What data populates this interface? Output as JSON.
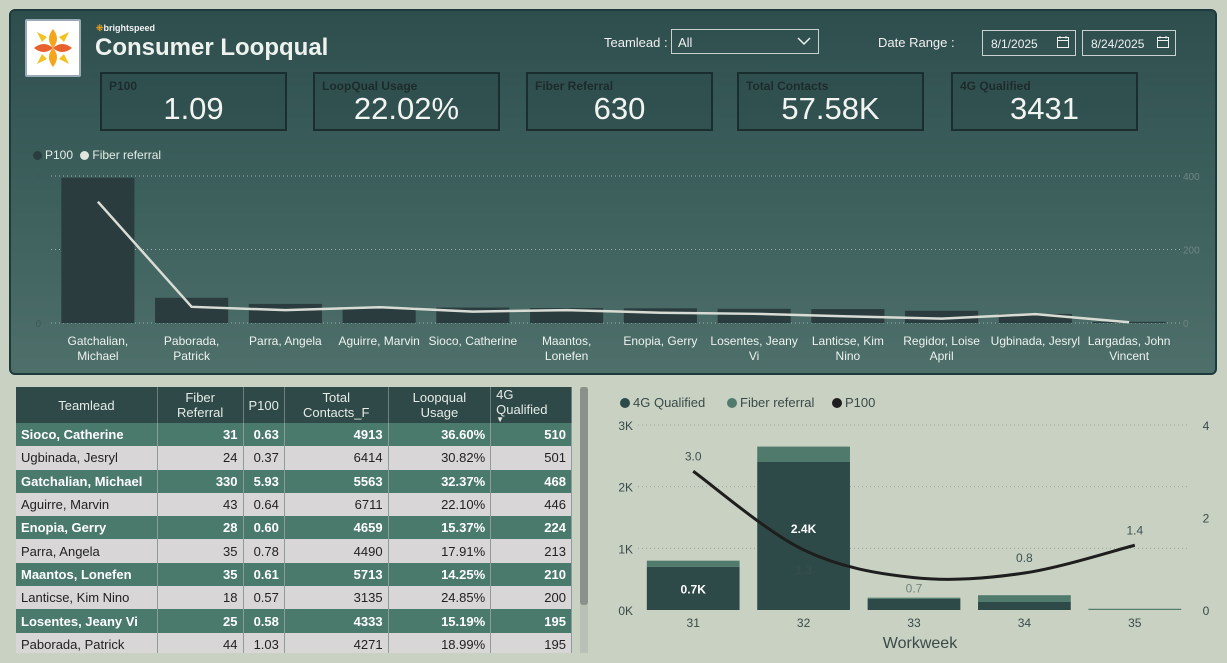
{
  "header": {
    "brand": "brightspeed",
    "title": "Consumer Loopqual"
  },
  "filters": {
    "teamlead_label": "Teamlead :",
    "teamlead_value": "All",
    "date_label": "Date Range :",
    "date_start": "8/1/2025",
    "date_end": "8/24/2025"
  },
  "kpis": [
    {
      "label": "P100",
      "value": "1.09"
    },
    {
      "label": "LoopQual Usage",
      "value": "22.02%"
    },
    {
      "label": "Fiber Referral",
      "value": "630"
    },
    {
      "label": "Total Contacts",
      "value": "57.58K"
    },
    {
      "label": "4G Qualified",
      "value": "3431"
    }
  ],
  "colors": {
    "bar_dark": "#2b3c3f",
    "line_light": "#d8dcd4",
    "bar_teal_dark": "#2e4a48",
    "bar_teal_light": "#4f7a6c",
    "line_black": "#1e1e1e"
  },
  "top_chart": {
    "legend": [
      "P100",
      "Fiber referral"
    ],
    "categories": [
      "Gatchalian, Michael",
      "Paborada, Patrick",
      "Parra, Angela",
      "Aguirre, Marvin",
      "Sioco, Catherine",
      "Maantos, Lonefen",
      "Enopia, Gerry",
      "Losentes, Jeany Vi",
      "Lanticse, Kim Nino",
      "Regidor, Loise April",
      "Ugbinada, Jesryl",
      "Largadas, John Vincent"
    ],
    "category_lines": [
      [
        "Gatchalian,",
        "Michael"
      ],
      [
        "Paborada,",
        "Patrick"
      ],
      [
        "Parra, Angela"
      ],
      [
        "Aguirre, Marvin"
      ],
      [
        "Sioco, Catherine"
      ],
      [
        "Maantos,",
        "Lonefen"
      ],
      [
        "Enopia, Gerry"
      ],
      [
        "Losentes, Jeany",
        "Vi"
      ],
      [
        "Lanticse, Kim",
        "Nino"
      ],
      [
        "Regidor, Loise",
        "April"
      ],
      [
        "Ugbinada, Jesryl"
      ],
      [
        "Largadas, John",
        "Vincent"
      ]
    ],
    "p100": [
      5.93,
      1.03,
      0.78,
      0.64,
      0.63,
      0.61,
      0.6,
      0.58,
      0.57,
      0.5,
      0.37,
      0.05
    ],
    "fiber_referral": [
      330,
      44,
      35,
      43,
      31,
      35,
      28,
      25,
      18,
      12,
      24,
      2
    ],
    "left_axis": {
      "ticks": [
        "0",
        "6"
      ],
      "max": 6
    },
    "right_axis": {
      "ticks": [
        "0",
        "200",
        "400"
      ],
      "max": 400
    }
  },
  "table": {
    "columns": [
      "Teamlead",
      "Fiber Referral",
      "P100",
      "Total Contacts_F",
      "Loopqual Usage",
      "4G Qualified"
    ],
    "rows": [
      [
        "Sioco, Catherine",
        "31",
        "0.63",
        "4913",
        "36.60%",
        "510"
      ],
      [
        "Ugbinada, Jesryl",
        "24",
        "0.37",
        "6414",
        "30.82%",
        "501"
      ],
      [
        "Gatchalian, Michael",
        "330",
        "5.93",
        "5563",
        "32.37%",
        "468"
      ],
      [
        "Aguirre, Marvin",
        "43",
        "0.64",
        "6711",
        "22.10%",
        "446"
      ],
      [
        "Enopia, Gerry",
        "28",
        "0.60",
        "4659",
        "15.37%",
        "224"
      ],
      [
        "Parra, Angela",
        "35",
        "0.78",
        "4490",
        "17.91%",
        "213"
      ],
      [
        "Maantos, Lonefen",
        "35",
        "0.61",
        "5713",
        "14.25%",
        "210"
      ],
      [
        "Lanticse, Kim Nino",
        "18",
        "0.57",
        "3135",
        "24.85%",
        "200"
      ],
      [
        "Losentes, Jeany Vi",
        "25",
        "0.58",
        "4333",
        "15.19%",
        "195"
      ],
      [
        "Paborada, Patrick",
        "44",
        "1.03",
        "4271",
        "18.99%",
        "195"
      ]
    ]
  },
  "chart_data": {
    "type": "bar",
    "legend": [
      "4G Qualified",
      "Fiber referral",
      "P100"
    ],
    "xlabel": "Workweek",
    "categories": [
      "31",
      "32",
      "33",
      "34",
      "35"
    ],
    "series": [
      {
        "name": "4G Qualified",
        "values": [
          700,
          2400,
          180,
          130,
          5
        ]
      },
      {
        "name": "Fiber referral",
        "values": [
          100,
          250,
          20,
          110,
          15
        ]
      },
      {
        "name": "P100",
        "values": [
          3.0,
          1.3,
          0.7,
          0.8,
          1.4
        ]
      }
    ],
    "bar_labels": [
      "0.7K",
      "2.4K",
      "",
      "",
      ""
    ],
    "line_labels": [
      "3.0",
      "1.3",
      "0.7",
      "0.8",
      "1.4"
    ],
    "left_axis": {
      "ticks": [
        "0K",
        "1K",
        "2K",
        "3K"
      ],
      "max": 3000
    },
    "right_axis": {
      "ticks": [
        "0",
        "2",
        "4"
      ],
      "max": 4
    }
  }
}
